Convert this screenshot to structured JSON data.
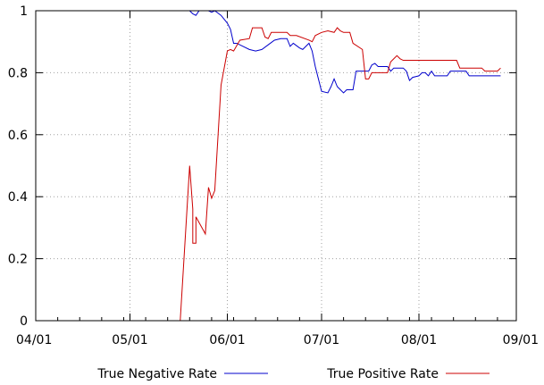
{
  "chart_data": {
    "type": "line",
    "title": "",
    "xlabel": "",
    "ylabel": "",
    "x_axis": {
      "min": "2024-04-01",
      "max": "2024-09-01",
      "ticks": [
        "2024-04-01",
        "2024-05-01",
        "2024-06-01",
        "2024-07-01",
        "2024-08-01",
        "2024-09-01"
      ],
      "tick_labels": [
        "04/01",
        "05/01",
        "06/01",
        "07/01",
        "08/01",
        "09/01"
      ]
    },
    "y_axis": {
      "min": 0,
      "max": 1,
      "ticks": [
        0,
        0.2,
        0.4,
        0.6,
        0.8,
        1
      ],
      "tick_labels": [
        "0",
        "0.2",
        "0.4",
        "0.6",
        "0.8",
        "1"
      ]
    },
    "grid": true,
    "legend_position": "bottom",
    "series": [
      {
        "name": "True Negative Rate",
        "color": "#0000cc",
        "points": [
          [
            "2024-05-20",
            1.0
          ],
          [
            "2024-05-21",
            0.99
          ],
          [
            "2024-05-22",
            0.985
          ],
          [
            "2024-05-23",
            1.0
          ],
          [
            "2024-05-25",
            1.0
          ],
          [
            "2024-05-26",
            1.0
          ],
          [
            "2024-05-27",
            0.995
          ],
          [
            "2024-05-28",
            1.0
          ],
          [
            "2024-05-30",
            0.985
          ],
          [
            "2024-06-01",
            0.96
          ],
          [
            "2024-06-02",
            0.94
          ],
          [
            "2024-06-03",
            0.895
          ],
          [
            "2024-06-04",
            0.895
          ],
          [
            "2024-06-06",
            0.885
          ],
          [
            "2024-06-08",
            0.875
          ],
          [
            "2024-06-10",
            0.87
          ],
          [
            "2024-06-12",
            0.875
          ],
          [
            "2024-06-14",
            0.89
          ],
          [
            "2024-06-16",
            0.905
          ],
          [
            "2024-06-18",
            0.91
          ],
          [
            "2024-06-20",
            0.91
          ],
          [
            "2024-06-21",
            0.885
          ],
          [
            "2024-06-22",
            0.895
          ],
          [
            "2024-06-24",
            0.88
          ],
          [
            "2024-06-25",
            0.875
          ],
          [
            "2024-06-26",
            0.885
          ],
          [
            "2024-06-27",
            0.895
          ],
          [
            "2024-06-28",
            0.87
          ],
          [
            "2024-06-29",
            0.82
          ],
          [
            "2024-06-30",
            0.78
          ],
          [
            "2024-07-01",
            0.74
          ],
          [
            "2024-07-03",
            0.735
          ],
          [
            "2024-07-04",
            0.755
          ],
          [
            "2024-07-05",
            0.78
          ],
          [
            "2024-07-06",
            0.755
          ],
          [
            "2024-07-08",
            0.735
          ],
          [
            "2024-07-09",
            0.745
          ],
          [
            "2024-07-10",
            0.745
          ],
          [
            "2024-07-11",
            0.745
          ],
          [
            "2024-07-12",
            0.805
          ],
          [
            "2024-07-14",
            0.805
          ],
          [
            "2024-07-16",
            0.805
          ],
          [
            "2024-07-17",
            0.825
          ],
          [
            "2024-07-18",
            0.83
          ],
          [
            "2024-07-19",
            0.82
          ],
          [
            "2024-07-21",
            0.82
          ],
          [
            "2024-07-22",
            0.82
          ],
          [
            "2024-07-23",
            0.805
          ],
          [
            "2024-07-24",
            0.815
          ],
          [
            "2024-07-26",
            0.815
          ],
          [
            "2024-07-27",
            0.815
          ],
          [
            "2024-07-28",
            0.805
          ],
          [
            "2024-07-29",
            0.775
          ],
          [
            "2024-07-30",
            0.785
          ],
          [
            "2024-08-01",
            0.79
          ],
          [
            "2024-08-02",
            0.8
          ],
          [
            "2024-08-03",
            0.8
          ],
          [
            "2024-08-04",
            0.79
          ],
          [
            "2024-08-05",
            0.805
          ],
          [
            "2024-08-06",
            0.79
          ],
          [
            "2024-08-10",
            0.79
          ],
          [
            "2024-08-11",
            0.805
          ],
          [
            "2024-08-16",
            0.805
          ],
          [
            "2024-08-17",
            0.79
          ],
          [
            "2024-08-27",
            0.79
          ]
        ]
      },
      {
        "name": "True Positive Rate",
        "color": "#cc0000",
        "points": [
          [
            "2024-05-17",
            0.0
          ],
          [
            "2024-05-20",
            0.5
          ],
          [
            "2024-05-21",
            0.36
          ],
          [
            "2024-05-21",
            0.25
          ],
          [
            "2024-05-22",
            0.25
          ],
          [
            "2024-05-22",
            0.335
          ],
          [
            "2024-05-25",
            0.28
          ],
          [
            "2024-05-26",
            0.43
          ],
          [
            "2024-05-27",
            0.395
          ],
          [
            "2024-05-28",
            0.42
          ],
          [
            "2024-05-30",
            0.76
          ],
          [
            "2024-06-01",
            0.87
          ],
          [
            "2024-06-02",
            0.875
          ],
          [
            "2024-06-03",
            0.87
          ],
          [
            "2024-06-05",
            0.905
          ],
          [
            "2024-06-08",
            0.91
          ],
          [
            "2024-06-09",
            0.945
          ],
          [
            "2024-06-12",
            0.945
          ],
          [
            "2024-06-13",
            0.915
          ],
          [
            "2024-06-14",
            0.91
          ],
          [
            "2024-06-15",
            0.93
          ],
          [
            "2024-06-20",
            0.93
          ],
          [
            "2024-06-21",
            0.92
          ],
          [
            "2024-06-23",
            0.92
          ],
          [
            "2024-06-27",
            0.905
          ],
          [
            "2024-06-28",
            0.9
          ],
          [
            "2024-06-29",
            0.92
          ],
          [
            "2024-07-01",
            0.93
          ],
          [
            "2024-07-03",
            0.935
          ],
          [
            "2024-07-05",
            0.93
          ],
          [
            "2024-07-06",
            0.945
          ],
          [
            "2024-07-07",
            0.935
          ],
          [
            "2024-07-08",
            0.93
          ],
          [
            "2024-07-10",
            0.93
          ],
          [
            "2024-07-11",
            0.895
          ],
          [
            "2024-07-14",
            0.875
          ],
          [
            "2024-07-15",
            0.78
          ],
          [
            "2024-07-16",
            0.78
          ],
          [
            "2024-07-17",
            0.8
          ],
          [
            "2024-07-22",
            0.8
          ],
          [
            "2024-07-23",
            0.835
          ],
          [
            "2024-07-24",
            0.845
          ],
          [
            "2024-07-25",
            0.855
          ],
          [
            "2024-07-26",
            0.845
          ],
          [
            "2024-07-27",
            0.84
          ],
          [
            "2024-08-13",
            0.84
          ],
          [
            "2024-08-14",
            0.815
          ],
          [
            "2024-08-21",
            0.815
          ],
          [
            "2024-08-22",
            0.805
          ],
          [
            "2024-08-26",
            0.805
          ],
          [
            "2024-08-27",
            0.815
          ]
        ]
      }
    ]
  }
}
